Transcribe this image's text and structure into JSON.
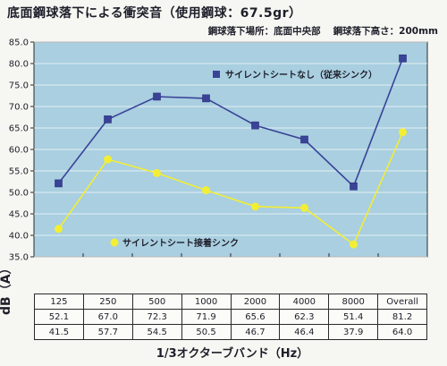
{
  "header": {
    "title": "底面鋼球落下による衝突音（使用鋼球：67.5gr）",
    "subtitle_location": "鋼球落下場所：底面中央部",
    "subtitle_height": "鋼球落下高さ：200mm"
  },
  "colors": {
    "plot_bg": "#a9cfe0",
    "blue_series": "#3a4398",
    "yellow_series": "#f2ee35"
  },
  "chart_data": {
    "type": "line",
    "categories": [
      "125",
      "250",
      "500",
      "1000",
      "2000",
      "4000",
      "8000",
      "Overall"
    ],
    "ylabel": "dB（A）",
    "xlabel": "1/3オクターブバンド（Hz）",
    "ylim": [
      35.0,
      85.0
    ],
    "ytick_step": 5,
    "yticks": [
      "35.0",
      "40.0",
      "45.0",
      "50.0",
      "55.0",
      "60.0",
      "65.0",
      "70.0",
      "75.0",
      "80.0",
      "85.0"
    ],
    "grid": true,
    "series": [
      {
        "name": "サイレントシートなし（従来シンク）",
        "color": "#3a4398",
        "marker": "square",
        "values": [
          52.1,
          67.0,
          72.3,
          71.9,
          65.6,
          62.3,
          51.4,
          81.2
        ],
        "table_values": [
          "52.1",
          "67.0",
          "72.3",
          "71.9",
          "65.6",
          "62.3",
          "51.4",
          "81.2"
        ]
      },
      {
        "name": "サイレントシート接着シンク",
        "color": "#f2ee35",
        "marker": "circle",
        "values": [
          41.5,
          57.7,
          54.5,
          50.5,
          46.7,
          46.4,
          37.9,
          64.0
        ],
        "table_values": [
          "41.5",
          "57.7",
          "54.5",
          "50.5",
          "46.7",
          "46.4",
          "37.9",
          "64.0"
        ]
      }
    ]
  }
}
